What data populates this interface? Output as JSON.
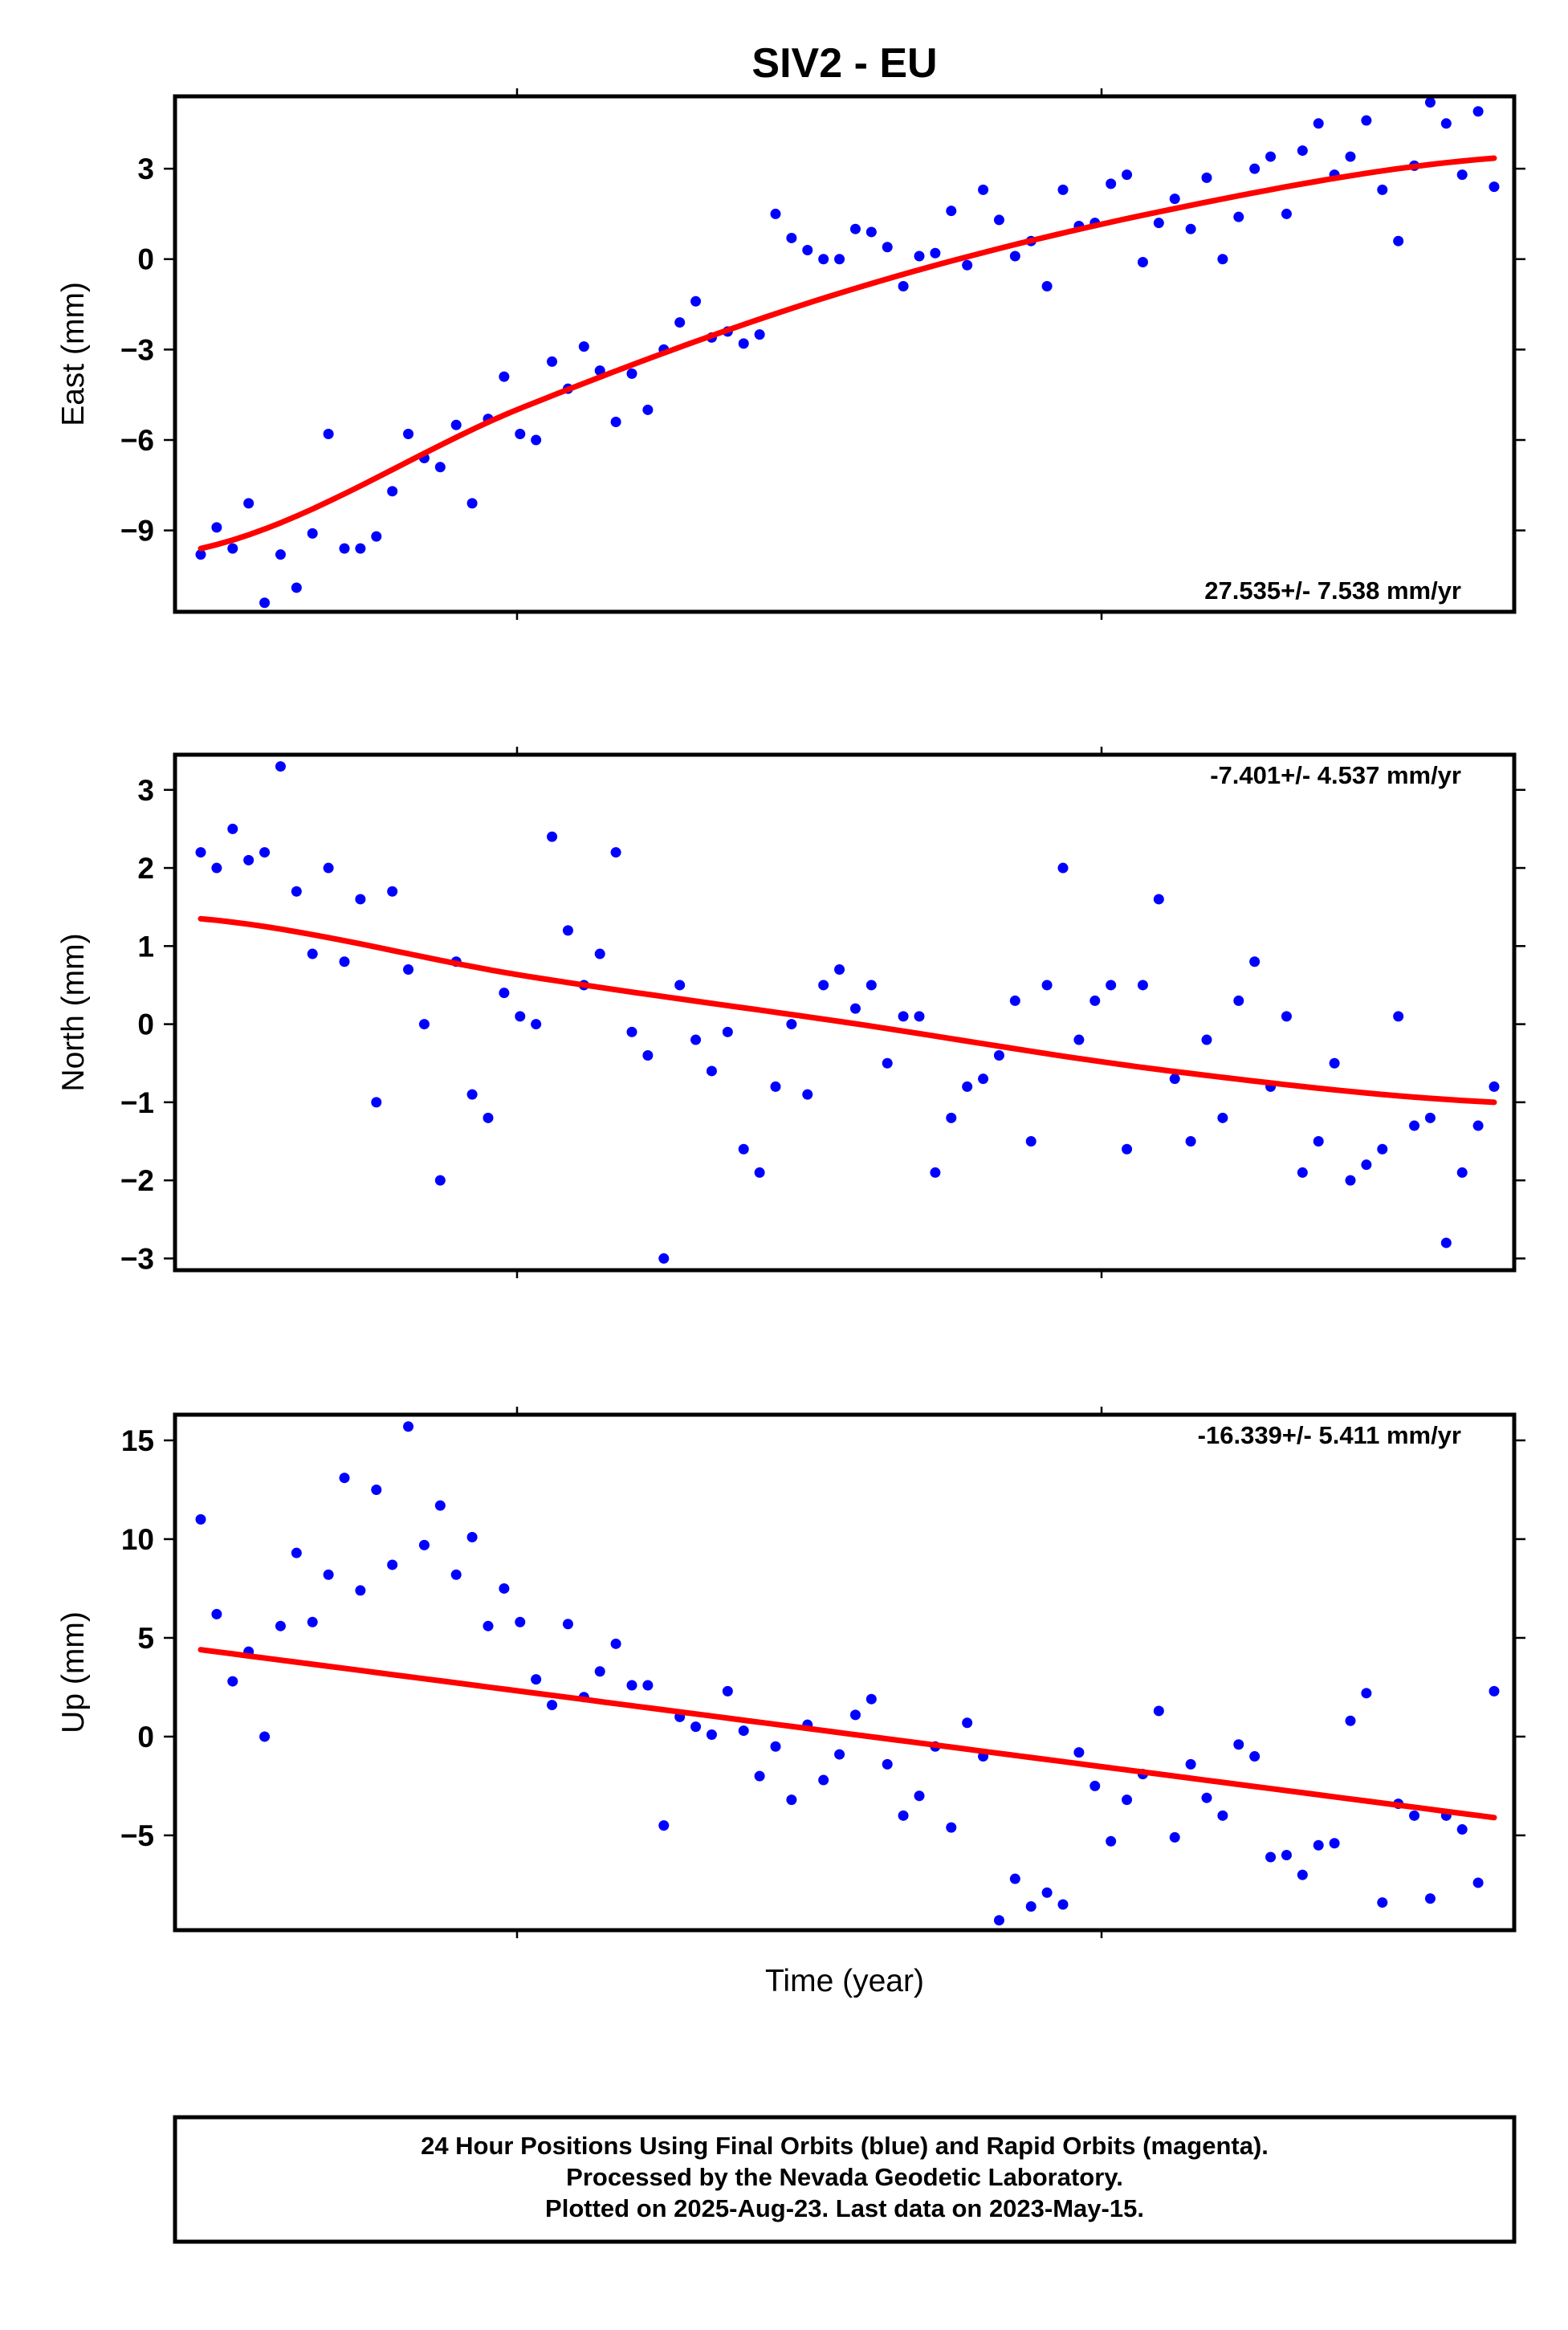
{
  "figure": {
    "title": "SIV2 - EU",
    "xlabel": "Time (year)",
    "footer": [
      "24 Hour Positions Using Final Orbits (blue) and Rapid Orbits (magenta).",
      "Processed by the Nevada Geodetic Laboratory.",
      "Plotted on 2025-Aug-23. Last data on 2023-May-15."
    ],
    "colors": {
      "final_points": "#0000ff",
      "fit_line": "#ff0000",
      "frame": "#000000",
      "background": "#ffffff"
    }
  },
  "chart_data": [
    {
      "type": "scatter",
      "panel": "east",
      "ylabel": "East (mm)",
      "ylim": [
        -11.7,
        5.4
      ],
      "yticks": [
        3,
        0,
        -3,
        -6,
        -9
      ],
      "ytick_labels": [
        "3",
        "0",
        "−3",
        "−6",
        "−9"
      ],
      "rate_label": "27.535+/- 7.538 mm/yr",
      "rate_position": "bottom-right",
      "series": [
        {
          "values": [
            -9.8,
            -8.9,
            -9.6,
            -8.1,
            -11.4,
            -9.8,
            -10.9,
            -9.1,
            -5.8,
            -9.6,
            -9.6,
            -9.2,
            -7.7,
            -5.8,
            -6.6,
            -6.9,
            -5.5,
            -8.1,
            -5.3,
            -3.9,
            -5.8,
            -6.0,
            -3.4,
            -4.3,
            -2.9,
            -3.7,
            -5.4,
            -3.8,
            -5.0,
            -3.0,
            -2.1,
            -1.4,
            -2.6,
            -2.4,
            -2.8,
            -2.5,
            1.5,
            0.7,
            0.3,
            0.0,
            0.0,
            1.0,
            0.9,
            0.4,
            -0.9,
            0.1,
            0.2,
            1.6,
            -0.2,
            2.3,
            1.3,
            0.1,
            0.6,
            -0.9,
            2.3,
            1.1,
            1.2,
            2.5,
            2.8,
            -0.1,
            1.2,
            2.0,
            1.0,
            2.7,
            0.0,
            1.4,
            3.0,
            3.4,
            1.5,
            3.6,
            4.5,
            2.8,
            3.4,
            4.6,
            2.3,
            0.6,
            3.1,
            5.2,
            4.5,
            2.8,
            4.9,
            2.4
          ]
        },
        {
          "name": "fit",
          "x": [
            0,
            0.25,
            0.5,
            0.75,
            1
          ],
          "values": [
            -9.6,
            -4.9,
            -1.05,
            1.65,
            3.35
          ]
        }
      ]
    },
    {
      "type": "scatter",
      "panel": "north",
      "ylabel": "North (mm)",
      "ylim": [
        -3.15,
        3.45
      ],
      "yticks": [
        3,
        2,
        1,
        0,
        -1,
        -2,
        -3
      ],
      "ytick_labels": [
        "3",
        "2",
        "1",
        "0",
        "−1",
        "−2",
        "−3"
      ],
      "rate_label": "-7.401+/- 4.537 mm/yr",
      "rate_position": "top-right",
      "series": [
        {
          "values": [
            2.2,
            2.0,
            2.5,
            2.1,
            2.2,
            3.3,
            1.7,
            0.9,
            2.0,
            0.8,
            1.6,
            -1.0,
            1.7,
            0.7,
            0.0,
            -2.0,
            0.8,
            -0.9,
            -1.2,
            0.4,
            0.1,
            0.0,
            2.4,
            1.2,
            0.5,
            0.9,
            2.2,
            -0.1,
            -0.4,
            -3.0,
            0.5,
            -0.2,
            -0.6,
            -0.1,
            -1.6,
            -1.9,
            -0.8,
            0.0,
            -0.9,
            0.5,
            0.7,
            0.2,
            0.5,
            -0.5,
            0.1,
            0.1,
            -1.9,
            -1.2,
            -0.8,
            -0.7,
            -0.4,
            0.3,
            -1.5,
            0.5,
            2.0,
            -0.2,
            0.3,
            0.5,
            -1.6,
            0.5,
            1.6,
            -0.7,
            -1.5,
            -0.2,
            -1.2,
            0.3,
            0.8,
            -0.8,
            0.1,
            -1.9,
            -1.5,
            -0.5,
            -2.0,
            -1.8,
            -1.6,
            0.1,
            -1.3,
            -1.2,
            -2.8,
            -1.9,
            -1.3,
            -0.8
          ]
        },
        {
          "name": "fit",
          "x": [
            0,
            0.25,
            0.5,
            0.75,
            1
          ],
          "values": [
            1.35,
            0.62,
            0.02,
            -0.6,
            -1.0
          ]
        }
      ]
    },
    {
      "type": "scatter",
      "panel": "up",
      "ylabel": "Up (mm)",
      "ylim": [
        -9.8,
        16.3
      ],
      "yticks": [
        15,
        10,
        5,
        0,
        -5
      ],
      "ytick_labels": [
        "15",
        "10",
        "5",
        "0",
        "−5"
      ],
      "rate_label": "-16.339+/- 5.411 mm/yr",
      "rate_position": "top-right",
      "series": [
        {
          "values": [
            11.0,
            6.2,
            2.8,
            4.3,
            0.0,
            5.6,
            9.3,
            5.8,
            8.2,
            13.1,
            7.4,
            12.5,
            8.7,
            15.7,
            9.7,
            11.7,
            8.2,
            10.1,
            5.6,
            7.5,
            5.8,
            2.9,
            1.6,
            5.7,
            2.0,
            3.3,
            4.7,
            2.6,
            2.6,
            -4.5,
            1.0,
            0.5,
            0.1,
            2.3,
            0.3,
            -2.0,
            -0.5,
            -3.2,
            0.6,
            -2.2,
            -0.9,
            1.1,
            1.9,
            -1.4,
            -4.0,
            -3.0,
            -0.5,
            -4.6,
            0.7,
            -1.0,
            -9.3,
            -7.2,
            -8.6,
            -7.9,
            -8.5,
            -0.8,
            -2.5,
            -5.3,
            -3.2,
            -1.9,
            1.3,
            -5.1,
            -1.4,
            -3.1,
            -4.0,
            -0.4,
            -1.0,
            -6.1,
            -6.0,
            -7.0,
            -5.5,
            -5.4,
            0.8,
            2.2,
            -8.4,
            -3.4,
            -4.0,
            -8.2,
            -4.0,
            -4.7,
            -7.4,
            2.3
          ]
        },
        {
          "name": "fit",
          "x": [
            0,
            1
          ],
          "values": [
            4.4,
            -4.1
          ]
        }
      ]
    }
  ]
}
